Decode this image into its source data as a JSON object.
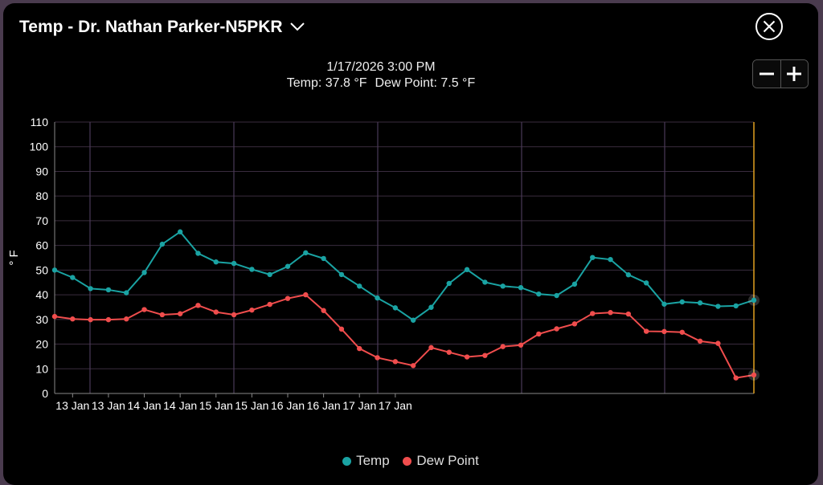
{
  "header": {
    "title": "Temp - Dr. Nathan Parker-N5PKR"
  },
  "icons": {
    "dropdown": "chevron-down-icon",
    "close": "close-icon",
    "zoom_out": "minus-icon",
    "zoom_in": "plus-icon"
  },
  "tooltip": {
    "datetime": "1/17/2026 3:00 PM",
    "temp_text": "Temp: 37.8 °F",
    "dew_text": "Dew Point: 7.5 °F"
  },
  "legend": {
    "temp": "Temp",
    "dew": "Dew Point"
  },
  "colors": {
    "temp": "#1aa3a3",
    "dew": "#f04d4d",
    "cursor": "#e0a020",
    "grid": "#3a2c3e",
    "vline": "#4a3a58"
  },
  "chart_data": {
    "type": "line",
    "ylabel": "° F",
    "ylim": [
      0,
      110
    ],
    "y_ticks": [
      0,
      10,
      20,
      30,
      40,
      50,
      60,
      70,
      80,
      90,
      100,
      110
    ],
    "x_tick_labels": [
      "13 Jan",
      "13 Jan",
      "14 Jan",
      "14 Jan",
      "15 Jan",
      "15 Jan",
      "16 Jan",
      "16 Jan",
      "17 Jan",
      "17 Jan"
    ],
    "x_tick_index": [
      1,
      3,
      5,
      7,
      9,
      11,
      13,
      15,
      17,
      19
    ],
    "series": [
      {
        "name": "Temp",
        "color": "#1aa3a3",
        "values": [
          50,
          47,
          42.5,
          42,
          40.8,
          49,
          60.5,
          65.5,
          56.8,
          53.3,
          52.7,
          50.3,
          48.2,
          51.5,
          57,
          54.7,
          48.2,
          43.5,
          38.7,
          34.7,
          29.7,
          34.9,
          44.6,
          50.2,
          45.1,
          43.5,
          42.9,
          40.3,
          39.7,
          44.3,
          55.1,
          54.3,
          48.1,
          44.8,
          36.2,
          37.1,
          36.7,
          35.3,
          35.5,
          37.8
        ]
      },
      {
        "name": "Dew Point",
        "color": "#f04d4d",
        "values": [
          31.2,
          30.2,
          29.9,
          29.9,
          30.2,
          34,
          31.9,
          32.3,
          35.7,
          33,
          31.9,
          33.8,
          36.1,
          38.5,
          40,
          33.6,
          26.1,
          18.2,
          14.5,
          12.9,
          11.3,
          18.6,
          16.7,
          14.8,
          15.4,
          19,
          19.6,
          24.1,
          26.2,
          28.2,
          32.4,
          32.8,
          32.2,
          25.2,
          25.1,
          24.8,
          21.2,
          20.3,
          6.3,
          7.5
        ]
      }
    ]
  }
}
